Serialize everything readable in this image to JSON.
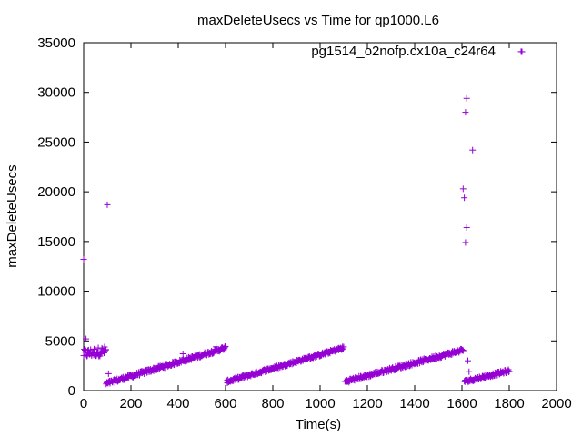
{
  "chart_data": {
    "type": "scatter",
    "title": "maxDeleteUsecs vs Time for qp1000.L6",
    "xlabel": "Time(s)",
    "ylabel": "maxDeleteUsecs",
    "xlim": [
      0,
      2000
    ],
    "ylim": [
      0,
      35000
    ],
    "x_ticks": [
      "0",
      "200",
      "400",
      "600",
      "800",
      "1000",
      "1200",
      "1400",
      "1600",
      "1800",
      "2000"
    ],
    "y_ticks": [
      "0",
      "5000",
      "10000",
      "15000",
      "20000",
      "25000",
      "30000",
      "35000"
    ],
    "grid": false,
    "legend_position": "top-right",
    "marker": "+",
    "color": "#9400d3",
    "series": [
      {
        "name": "pg1514_o2nofp.cx10a_c24r64",
        "segments": [
          {
            "x_start": 0,
            "x_end": 95,
            "y_start": 3700,
            "y_end": 4000,
            "spread": 900
          },
          {
            "x_start": 95,
            "x_end": 600,
            "y_start": 700,
            "y_end": 4300,
            "spread": 350
          },
          {
            "x_start": 605,
            "x_end": 1100,
            "y_start": 900,
            "y_end": 4300,
            "spread": 300
          },
          {
            "x_start": 1105,
            "x_end": 1605,
            "y_start": 900,
            "y_end": 4100,
            "spread": 350
          },
          {
            "x_start": 1610,
            "x_end": 1800,
            "y_start": 900,
            "y_end": 2000,
            "spread": 300
          }
        ],
        "outliers": [
          {
            "x": 0,
            "y": 13200
          },
          {
            "x": 10,
            "y": 5200
          },
          {
            "x": 100,
            "y": 18700
          },
          {
            "x": 105,
            "y": 1700
          },
          {
            "x": 420,
            "y": 3700
          },
          {
            "x": 560,
            "y": 4400
          },
          {
            "x": 1605,
            "y": 20300
          },
          {
            "x": 1610,
            "y": 19400
          },
          {
            "x": 1615,
            "y": 28000
          },
          {
            "x": 1620,
            "y": 29400
          },
          {
            "x": 1620,
            "y": 16400
          },
          {
            "x": 1615,
            "y": 14900
          },
          {
            "x": 1645,
            "y": 24200
          },
          {
            "x": 1625,
            "y": 3000
          },
          {
            "x": 1630,
            "y": 1900
          },
          {
            "x": 1850,
            "y": 34100
          }
        ]
      }
    ]
  }
}
